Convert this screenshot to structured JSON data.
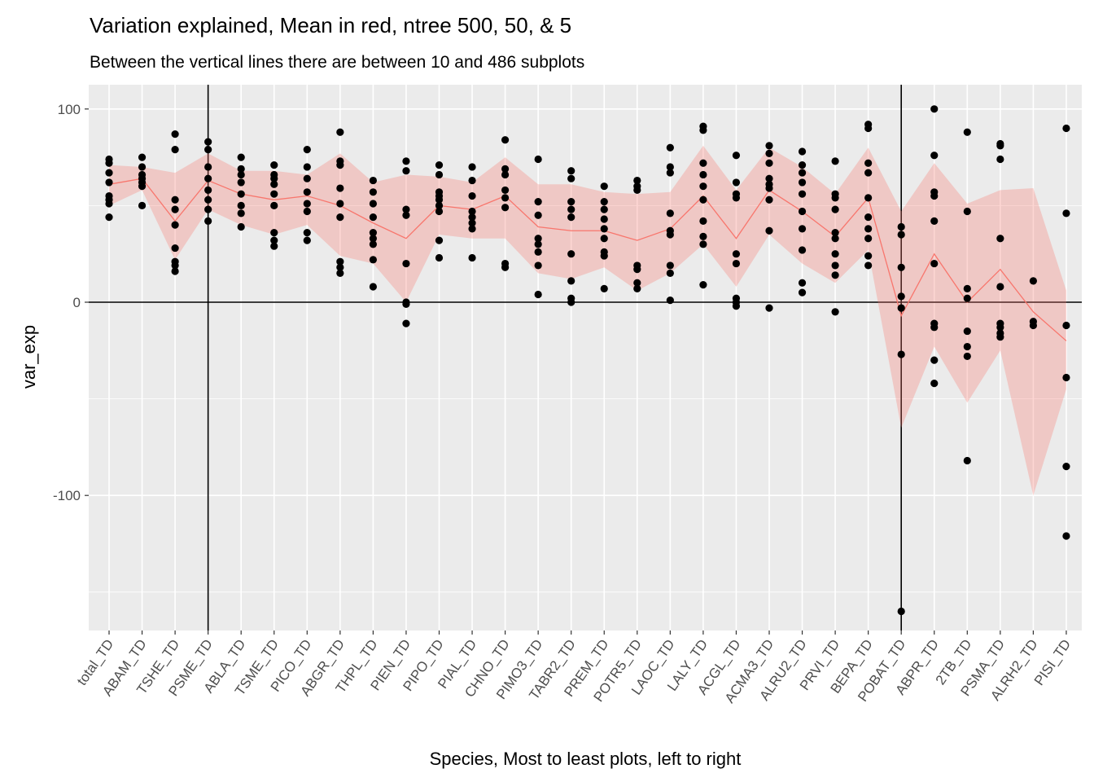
{
  "chart_data": {
    "type": "scatter",
    "title": "Variation explained, Mean in red, ntree 500, 50, & 5",
    "subtitle": "Between the vertical lines there are between 10 and 486 subplots",
    "xlabel": "Species, Most to least plots, left to right",
    "ylabel": "var_exp",
    "ylim": [
      -170,
      115
    ],
    "yticks": [
      -100,
      0,
      100
    ],
    "grid": true,
    "categories": [
      "total_TD",
      "ABAM_TD",
      "TSHE_TD",
      "PSME_TD",
      "ABLA_TD",
      "TSME_TD",
      "PICO_TD",
      "ABGR_TD",
      "THPL_TD",
      "PIEN_TD",
      "PIPO_TD",
      "PIAL_TD",
      "CHNO_TD",
      "PIMO3_TD",
      "TABR2_TD",
      "PREM_TD",
      "POTR5_TD",
      "LAOC_TD",
      "LALY_TD",
      "ACGL_TD",
      "ACMA3_TD",
      "ALRU2_TD",
      "PRVI_TD",
      "BEPA_TD",
      "POBAT_TD",
      "ABPR_TD",
      "2TB_TD",
      "PSMA_TD",
      "ALRH2_TD",
      "PISI_TD"
    ],
    "reference_lines": {
      "vertical_at": [
        "PSME_TD",
        "POBAT_TD"
      ],
      "horizontal_at": 0
    },
    "mean_line": [
      61,
      64,
      42,
      63,
      56,
      53,
      55,
      50,
      41,
      33,
      50,
      48,
      55,
      39,
      37,
      37,
      32,
      38,
      55,
      33,
      58,
      47,
      34,
      54,
      -7,
      25,
      0,
      17,
      -5,
      -20
    ],
    "ribbon_upper": [
      71,
      70,
      67,
      77,
      68,
      68,
      66,
      77,
      62,
      66,
      65,
      62,
      75,
      61,
      61,
      57,
      56,
      57,
      81,
      58,
      80,
      70,
      56,
      80,
      47,
      72,
      51,
      58,
      59,
      6
    ],
    "ribbon_lower": [
      50,
      58,
      22,
      48,
      40,
      35,
      40,
      24,
      20,
      0,
      35,
      33,
      33,
      15,
      12,
      18,
      6,
      15,
      30,
      8,
      35,
      20,
      10,
      27,
      -65,
      -23,
      -52,
      -25,
      -100,
      -45
    ],
    "points": [
      [
        44,
        51,
        53,
        55,
        62,
        67,
        72,
        74
      ],
      [
        50,
        60,
        62,
        64,
        66,
        70,
        75
      ],
      [
        16,
        19,
        21,
        28,
        40,
        48,
        53,
        79,
        87
      ],
      [
        42,
        48,
        53,
        58,
        64,
        70,
        79,
        83
      ],
      [
        39,
        46,
        50,
        56,
        62,
        66,
        69,
        75
      ],
      [
        29,
        32,
        36,
        50,
        56,
        61,
        64,
        66,
        71
      ],
      [
        32,
        36,
        47,
        51,
        57,
        64,
        70,
        79
      ],
      [
        15,
        18,
        21,
        44,
        51,
        59,
        71,
        73,
        88
      ],
      [
        8,
        22,
        30,
        33,
        36,
        44,
        51,
        57,
        63
      ],
      [
        -11,
        -1,
        0,
        20,
        45,
        48,
        68,
        73
      ],
      [
        23,
        32,
        47,
        50,
        53,
        55,
        57,
        66,
        71
      ],
      [
        23,
        38,
        41,
        44,
        47,
        55,
        63,
        70
      ],
      [
        18,
        20,
        49,
        54,
        58,
        66,
        69,
        84
      ],
      [
        4,
        19,
        26,
        30,
        33,
        45,
        52,
        74
      ],
      [
        0,
        2,
        11,
        25,
        44,
        48,
        52,
        64,
        68
      ],
      [
        7,
        24,
        26,
        33,
        38,
        43,
        48,
        52,
        60
      ],
      [
        7,
        10,
        17,
        19,
        58,
        60,
        63
      ],
      [
        1,
        15,
        19,
        35,
        37,
        46,
        67,
        70,
        80
      ],
      [
        9,
        30,
        34,
        42,
        53,
        60,
        66,
        72,
        89,
        91
      ],
      [
        -2,
        0,
        2,
        20,
        25,
        54,
        56,
        62,
        76
      ],
      [
        -3,
        37,
        53,
        59,
        61,
        64,
        72,
        77,
        81
      ],
      [
        5,
        10,
        27,
        38,
        47,
        56,
        62,
        67,
        71,
        78
      ],
      [
        -5,
        14,
        19,
        25,
        33,
        36,
        48,
        54,
        56,
        73
      ],
      [
        19,
        24,
        33,
        38,
        44,
        54,
        67,
        72,
        90,
        92
      ],
      [
        -160,
        -27,
        -3,
        3,
        18,
        35,
        39
      ],
      [
        -42,
        -30,
        -13,
        -11,
        20,
        42,
        55,
        57,
        76,
        100
      ],
      [
        -82,
        -28,
        -23,
        -15,
        2,
        7,
        47,
        88
      ],
      [
        -18,
        -16,
        -13,
        -11,
        8,
        33,
        74,
        81,
        82
      ],
      [
        -12,
        -10,
        11
      ],
      [
        -121,
        -85,
        -39,
        -12,
        46,
        90
      ]
    ],
    "colors": {
      "mean_line": "#f8766d",
      "ribbon": "#f8766d",
      "points": "#000000",
      "panel_bg": "#ebebeb",
      "grid": "#ffffff"
    }
  }
}
